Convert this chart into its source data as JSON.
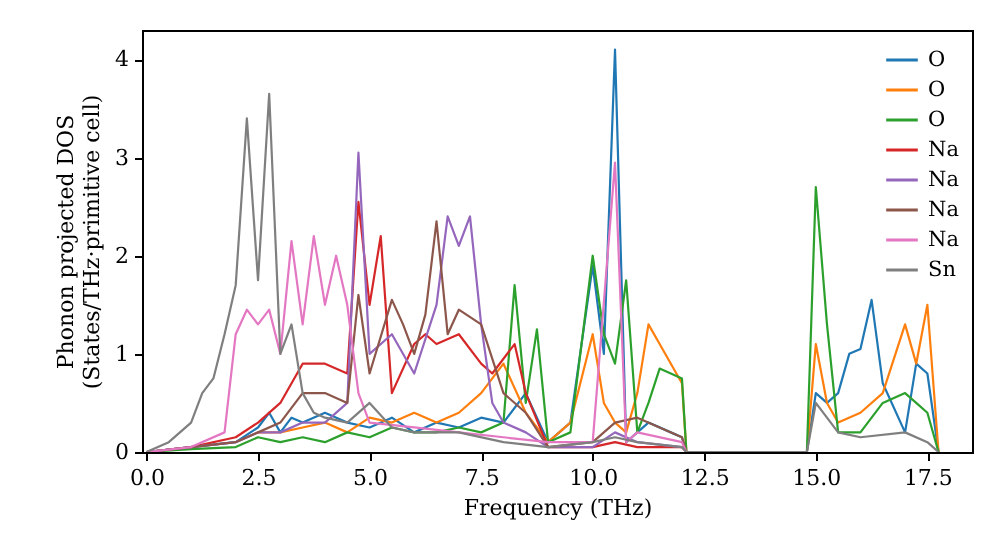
{
  "chart_data": {
    "type": "line",
    "xlabel": "Frequency (THz)",
    "ylabel": "Phonon projected DOS\n(States/THz·primitive cell)",
    "xlim": [
      -0.1,
      18.5
    ],
    "ylim": [
      0,
      4.3
    ],
    "xticks": [
      {
        "value": 0,
        "label": "0.0"
      },
      {
        "value": 2.5,
        "label": "2.5"
      },
      {
        "value": 5,
        "label": "5.0"
      },
      {
        "value": 7.5,
        "label": "7.5"
      },
      {
        "value": 10,
        "label": "10.0"
      },
      {
        "value": 12.5,
        "label": "12.5"
      },
      {
        "value": 15,
        "label": "15.0"
      },
      {
        "value": 17.5,
        "label": "17.5"
      }
    ],
    "yticks": [
      0,
      1,
      2,
      3,
      4
    ],
    "grid": false,
    "legend": "top right",
    "marker": "none",
    "line_style": "solid",
    "series": [
      {
        "name": "O",
        "color": "#1f77b4",
        "x": [
          0,
          1,
          2,
          2.5,
          2.75,
          3,
          3.25,
          3.5,
          4,
          4.5,
          5,
          5.5,
          6,
          6.5,
          7,
          7.5,
          8,
          8.5,
          9,
          9.5,
          10,
          10.25,
          10.5,
          10.75,
          11,
          11.25,
          11.75,
          12,
          12.1,
          14.8,
          15,
          15.25,
          15.5,
          15.75,
          16,
          16.25,
          16.5,
          17,
          17.25,
          17.5,
          17.75
        ],
        "values": [
          0,
          0.05,
          0.1,
          0.25,
          0.4,
          0.2,
          0.35,
          0.3,
          0.4,
          0.3,
          0.25,
          0.35,
          0.2,
          0.3,
          0.25,
          0.35,
          0.3,
          0.6,
          0.1,
          0.3,
          1.9,
          1.0,
          4.1,
          0.1,
          0.2,
          0.3,
          0.2,
          0.15,
          0,
          0,
          0.6,
          0.5,
          0.6,
          1.0,
          1.05,
          1.55,
          0.7,
          0.2,
          0.9,
          0.8,
          0
        ]
      },
      {
        "name": "O",
        "color": "#ff7f0e",
        "x": [
          2.5,
          3,
          3.5,
          4,
          4.5,
          5,
          5.5,
          6,
          6.5,
          7,
          7.5,
          8,
          8.5,
          9,
          9.5,
          10,
          10.25,
          10.5,
          10.75,
          11,
          11.25,
          11.5,
          12,
          12.1,
          14.8,
          15,
          15.25,
          15.5,
          16,
          16.5,
          17,
          17.25,
          17.5,
          17.75
        ],
        "values": [
          0.2,
          0.2,
          0.25,
          0.3,
          0.2,
          0.35,
          0.3,
          0.4,
          0.3,
          0.4,
          0.6,
          0.9,
          0.4,
          0.1,
          0.3,
          1.2,
          0.5,
          0.3,
          0.2,
          0.6,
          1.3,
          1.1,
          0.7,
          0,
          0,
          1.1,
          0.5,
          0.3,
          0.4,
          0.6,
          1.3,
          0.9,
          1.5,
          0
        ]
      },
      {
        "name": "O",
        "color": "#2ca02c",
        "x": [
          0,
          1,
          2,
          2.5,
          3,
          3.5,
          4,
          4.5,
          5,
          5.5,
          6,
          6.5,
          7,
          7.5,
          8,
          8.25,
          8.5,
          8.75,
          9,
          9.5,
          10,
          10.25,
          10.5,
          10.75,
          11,
          11.25,
          11.5,
          12,
          12.1,
          14.8,
          15,
          15.25,
          15.5,
          16,
          16.5,
          17,
          17.25,
          17.5,
          17.75
        ],
        "values": [
          0,
          0.03,
          0.05,
          0.15,
          0.1,
          0.15,
          0.1,
          0.2,
          0.15,
          0.25,
          0.2,
          0.2,
          0.25,
          0.2,
          0.3,
          1.7,
          0.5,
          1.25,
          0.1,
          0.2,
          2.0,
          1.2,
          0.9,
          1.75,
          0.2,
          0.5,
          0.85,
          0.75,
          0,
          0,
          2.7,
          1.3,
          0.2,
          0.2,
          0.5,
          0.6,
          0.5,
          0.4,
          0
        ]
      },
      {
        "name": "Na",
        "color": "#d62728",
        "x": [
          0,
          1,
          2,
          2.5,
          3,
          3.5,
          4,
          4.5,
          4.75,
          5,
          5.25,
          5.5,
          6,
          6.25,
          6.5,
          7,
          7.5,
          7.75,
          8.25,
          8.5,
          9,
          10,
          10.5,
          11,
          12,
          12.1
        ],
        "values": [
          0,
          0.05,
          0.15,
          0.3,
          0.5,
          0.9,
          0.9,
          0.8,
          2.55,
          1.5,
          2.2,
          0.6,
          1.1,
          1.2,
          1.1,
          1.2,
          0.9,
          0.8,
          1.1,
          0.6,
          0.05,
          0.05,
          0.1,
          0.05,
          0.05,
          0
        ]
      },
      {
        "name": "Na",
        "color": "#9467bd",
        "x": [
          0,
          1,
          2,
          2.5,
          3,
          3.5,
          4,
          4.5,
          4.75,
          5,
          5.5,
          6,
          6.5,
          6.75,
          7,
          7.25,
          7.5,
          7.75,
          8,
          8.5,
          9,
          10,
          10.5,
          11,
          12,
          12.1
        ],
        "values": [
          0,
          0.05,
          0.1,
          0.2,
          0.2,
          0.3,
          0.3,
          0.5,
          3.05,
          1.0,
          1.2,
          0.8,
          1.5,
          2.4,
          2.1,
          2.4,
          1.3,
          0.5,
          0.3,
          0.2,
          0.05,
          0.05,
          0.2,
          0.1,
          0.05,
          0
        ]
      },
      {
        "name": "Na",
        "color": "#8c564b",
        "x": [
          0,
          1,
          2,
          2.5,
          3,
          3.5,
          4,
          4.5,
          4.75,
          5,
          5.5,
          5.75,
          6,
          6.25,
          6.5,
          6.75,
          7,
          7.5,
          8,
          8.5,
          9,
          10,
          10.5,
          11,
          12,
          12.1
        ],
        "values": [
          0,
          0.05,
          0.1,
          0.2,
          0.3,
          0.6,
          0.6,
          0.5,
          1.6,
          0.8,
          1.55,
          1.3,
          1.0,
          1.4,
          2.35,
          1.2,
          1.45,
          1.3,
          0.6,
          0.4,
          0.05,
          0.1,
          0.3,
          0.35,
          0.15,
          0
        ]
      },
      {
        "name": "Na",
        "color": "#e377c2",
        "x": [
          0,
          1,
          1.75,
          2,
          2.25,
          2.5,
          2.75,
          3,
          3.25,
          3.5,
          3.75,
          4,
          4.25,
          4.5,
          4.75,
          5,
          6,
          7,
          8,
          9,
          10,
          10.5,
          10.75,
          11,
          12,
          12.1
        ],
        "values": [
          0,
          0.05,
          0.2,
          1.2,
          1.45,
          1.3,
          1.45,
          1.0,
          2.15,
          1.3,
          2.2,
          1.5,
          2.0,
          1.5,
          0.6,
          0.3,
          0.25,
          0.2,
          0.15,
          0.1,
          0.1,
          2.95,
          0.1,
          0.2,
          0.1,
          0
        ]
      },
      {
        "name": "Sn",
        "color": "#7f7f7f",
        "x": [
          0,
          0.5,
          1,
          1.25,
          1.5,
          1.75,
          2,
          2.25,
          2.5,
          2.75,
          3,
          3.25,
          3.5,
          3.75,
          4,
          4.5,
          5,
          5.5,
          6,
          7,
          8,
          9,
          10,
          10.5,
          11,
          12,
          12.1,
          14.8,
          15,
          15.5,
          16,
          17,
          17.5,
          17.75
        ],
        "values": [
          0,
          0.1,
          0.3,
          0.6,
          0.75,
          1.2,
          1.7,
          3.4,
          1.75,
          3.65,
          1.0,
          1.3,
          0.6,
          0.4,
          0.35,
          0.3,
          0.5,
          0.25,
          0.2,
          0.2,
          0.1,
          0.05,
          0.1,
          0.15,
          0.1,
          0.05,
          0,
          0,
          0.5,
          0.2,
          0.15,
          0.2,
          0.1,
          0
        ]
      }
    ]
  }
}
